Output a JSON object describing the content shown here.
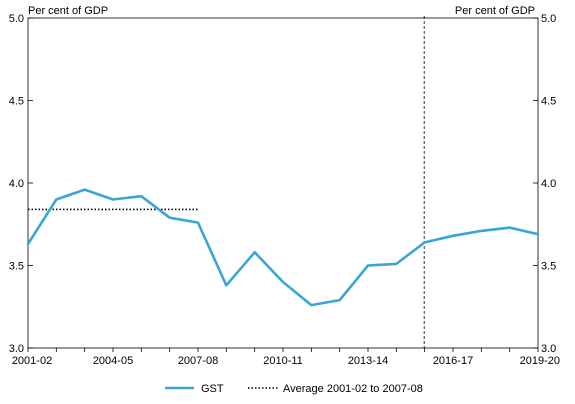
{
  "chart_data": {
    "type": "line",
    "unit_label_left": "Per cent of GDP",
    "unit_label_right": "Per cent of GDP",
    "ylim": [
      3.0,
      5.0
    ],
    "yticks": [
      3.0,
      3.5,
      4.0,
      4.5,
      5.0
    ],
    "ytick_labels": [
      "3.0",
      "3.5",
      "4.0",
      "4.5",
      "5.0"
    ],
    "x": [
      "2001-02",
      "2002-03",
      "2003-04",
      "2004-05",
      "2005-06",
      "2006-07",
      "2007-08",
      "2008-09",
      "2009-10",
      "2010-11",
      "2011-12",
      "2012-13",
      "2013-14",
      "2014-15",
      "2015-16",
      "2016-17",
      "2017-18",
      "2018-19",
      "2019-20"
    ],
    "xtick_labels": [
      "2001-02",
      "2004-05",
      "2007-08",
      "2010-11",
      "2013-14",
      "2016-17",
      "2019-20"
    ],
    "projection_start": "2015-16",
    "series": [
      {
        "name": "GST",
        "color": "#3aa6d4",
        "values": [
          3.63,
          3.9,
          3.96,
          3.9,
          3.92,
          3.79,
          3.76,
          3.38,
          3.58,
          3.4,
          3.26,
          3.29,
          3.5,
          3.51,
          3.64,
          3.68,
          3.71,
          3.73,
          3.69
        ]
      }
    ],
    "average_line": {
      "name": "Average 2001-02 to 2007-08",
      "value": 3.84,
      "from": "2001-02",
      "to": "2007-08",
      "style": "dotted",
      "color": "#000000"
    },
    "legend_position": "bottom-center",
    "grid": false
  }
}
